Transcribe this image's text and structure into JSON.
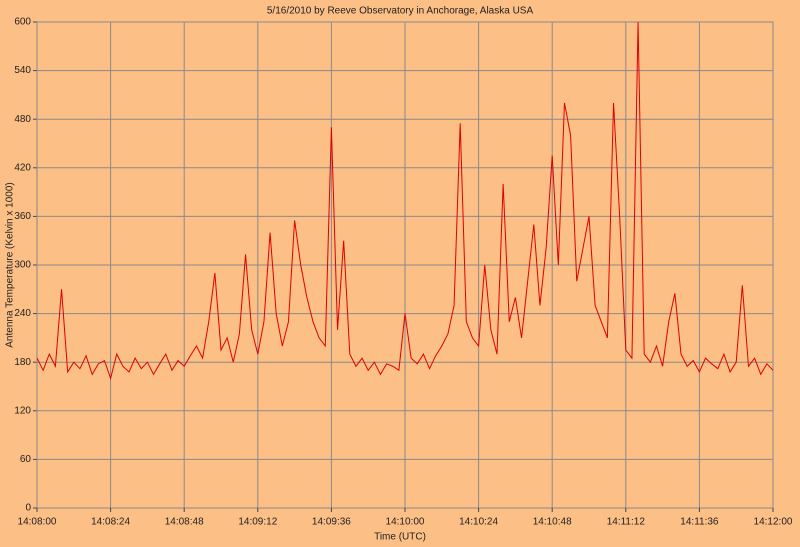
{
  "chart_data": {
    "type": "line",
    "title": "5/16/2010  by  Reeve Observatory  in  Anchorage, Alaska  USA",
    "xlabel": "Time (UTC)",
    "ylabel": "Antenna Temperature (Kelvin x 1000)",
    "x": [
      "14:08:00",
      "14:08:02",
      "14:08:04",
      "14:08:06",
      "14:08:08",
      "14:08:10",
      "14:08:12",
      "14:08:14",
      "14:08:16",
      "14:08:18",
      "14:08:20",
      "14:08:22",
      "14:08:24",
      "14:08:26",
      "14:08:28",
      "14:08:30",
      "14:08:32",
      "14:08:34",
      "14:08:36",
      "14:08:38",
      "14:08:40",
      "14:08:42",
      "14:08:44",
      "14:08:46",
      "14:08:48",
      "14:08:50",
      "14:08:52",
      "14:08:54",
      "14:08:56",
      "14:08:58",
      "14:09:00",
      "14:09:02",
      "14:09:04",
      "14:09:06",
      "14:09:08",
      "14:09:10",
      "14:09:12",
      "14:09:14",
      "14:09:16",
      "14:09:18",
      "14:09:20",
      "14:09:22",
      "14:09:24",
      "14:09:26",
      "14:09:28",
      "14:09:30",
      "14:09:32",
      "14:09:34",
      "14:09:36",
      "14:09:38",
      "14:09:40",
      "14:09:42",
      "14:09:44",
      "14:09:46",
      "14:09:48",
      "14:09:50",
      "14:09:52",
      "14:09:54",
      "14:09:56",
      "14:09:58",
      "14:10:00",
      "14:10:02",
      "14:10:04",
      "14:10:06",
      "14:10:08",
      "14:10:10",
      "14:10:12",
      "14:10:14",
      "14:10:16",
      "14:10:18",
      "14:10:20",
      "14:10:22",
      "14:10:24",
      "14:10:26",
      "14:10:28",
      "14:10:30",
      "14:10:32",
      "14:10:34",
      "14:10:36",
      "14:10:38",
      "14:10:40",
      "14:10:42",
      "14:10:44",
      "14:10:46",
      "14:10:48",
      "14:10:50",
      "14:10:52",
      "14:10:54",
      "14:10:56",
      "14:10:58",
      "14:11:00",
      "14:11:02",
      "14:11:04",
      "14:11:06",
      "14:11:08",
      "14:11:10",
      "14:11:12",
      "14:11:14",
      "14:11:16",
      "14:11:18",
      "14:11:20",
      "14:11:22",
      "14:11:24",
      "14:11:26",
      "14:11:28",
      "14:11:30",
      "14:11:32",
      "14:11:34",
      "14:11:36",
      "14:11:38",
      "14:11:40",
      "14:11:42",
      "14:11:44",
      "14:11:46",
      "14:11:48",
      "14:11:50",
      "14:11:52",
      "14:11:54",
      "14:11:56",
      "14:11:58",
      "14:12:00"
    ],
    "series": [
      {
        "name": "Antenna Temperature",
        "color": "#e00000",
        "values": [
          185,
          170,
          190,
          175,
          270,
          168,
          180,
          172,
          188,
          165,
          178,
          182,
          160,
          190,
          175,
          168,
          185,
          172,
          180,
          165,
          178,
          190,
          170,
          182,
          175,
          188,
          200,
          185,
          230,
          290,
          195,
          210,
          180,
          215,
          313,
          220,
          190,
          230,
          340,
          240,
          200,
          230,
          355,
          300,
          260,
          230,
          210,
          200,
          470,
          220,
          330,
          190,
          175,
          185,
          170,
          180,
          165,
          178,
          175,
          170,
          240,
          185,
          178,
          190,
          172,
          188,
          200,
          215,
          250,
          475,
          230,
          210,
          200,
          300,
          220,
          190,
          400,
          230,
          260,
          210,
          280,
          350,
          250,
          320,
          435,
          300,
          500,
          460,
          280,
          320,
          360,
          250,
          230,
          210,
          500,
          360,
          195,
          185,
          600,
          190,
          180,
          200,
          175,
          230,
          265,
          190,
          175,
          182,
          168,
          185,
          178,
          172,
          190,
          168,
          180,
          275,
          175,
          185,
          165,
          178,
          170
        ]
      }
    ],
    "xlim": [
      "14:08:00",
      "14:12:00"
    ],
    "xticks": [
      "14:08:00",
      "14:08:24",
      "14:08:48",
      "14:09:12",
      "14:09:36",
      "14:10:00",
      "14:10:24",
      "14:10:48",
      "14:11:12",
      "14:11:36",
      "14:12:00"
    ],
    "ylim": [
      0,
      600
    ],
    "yticks": [
      0,
      60,
      120,
      180,
      240,
      300,
      360,
      420,
      480,
      540,
      600
    ],
    "grid": true
  }
}
